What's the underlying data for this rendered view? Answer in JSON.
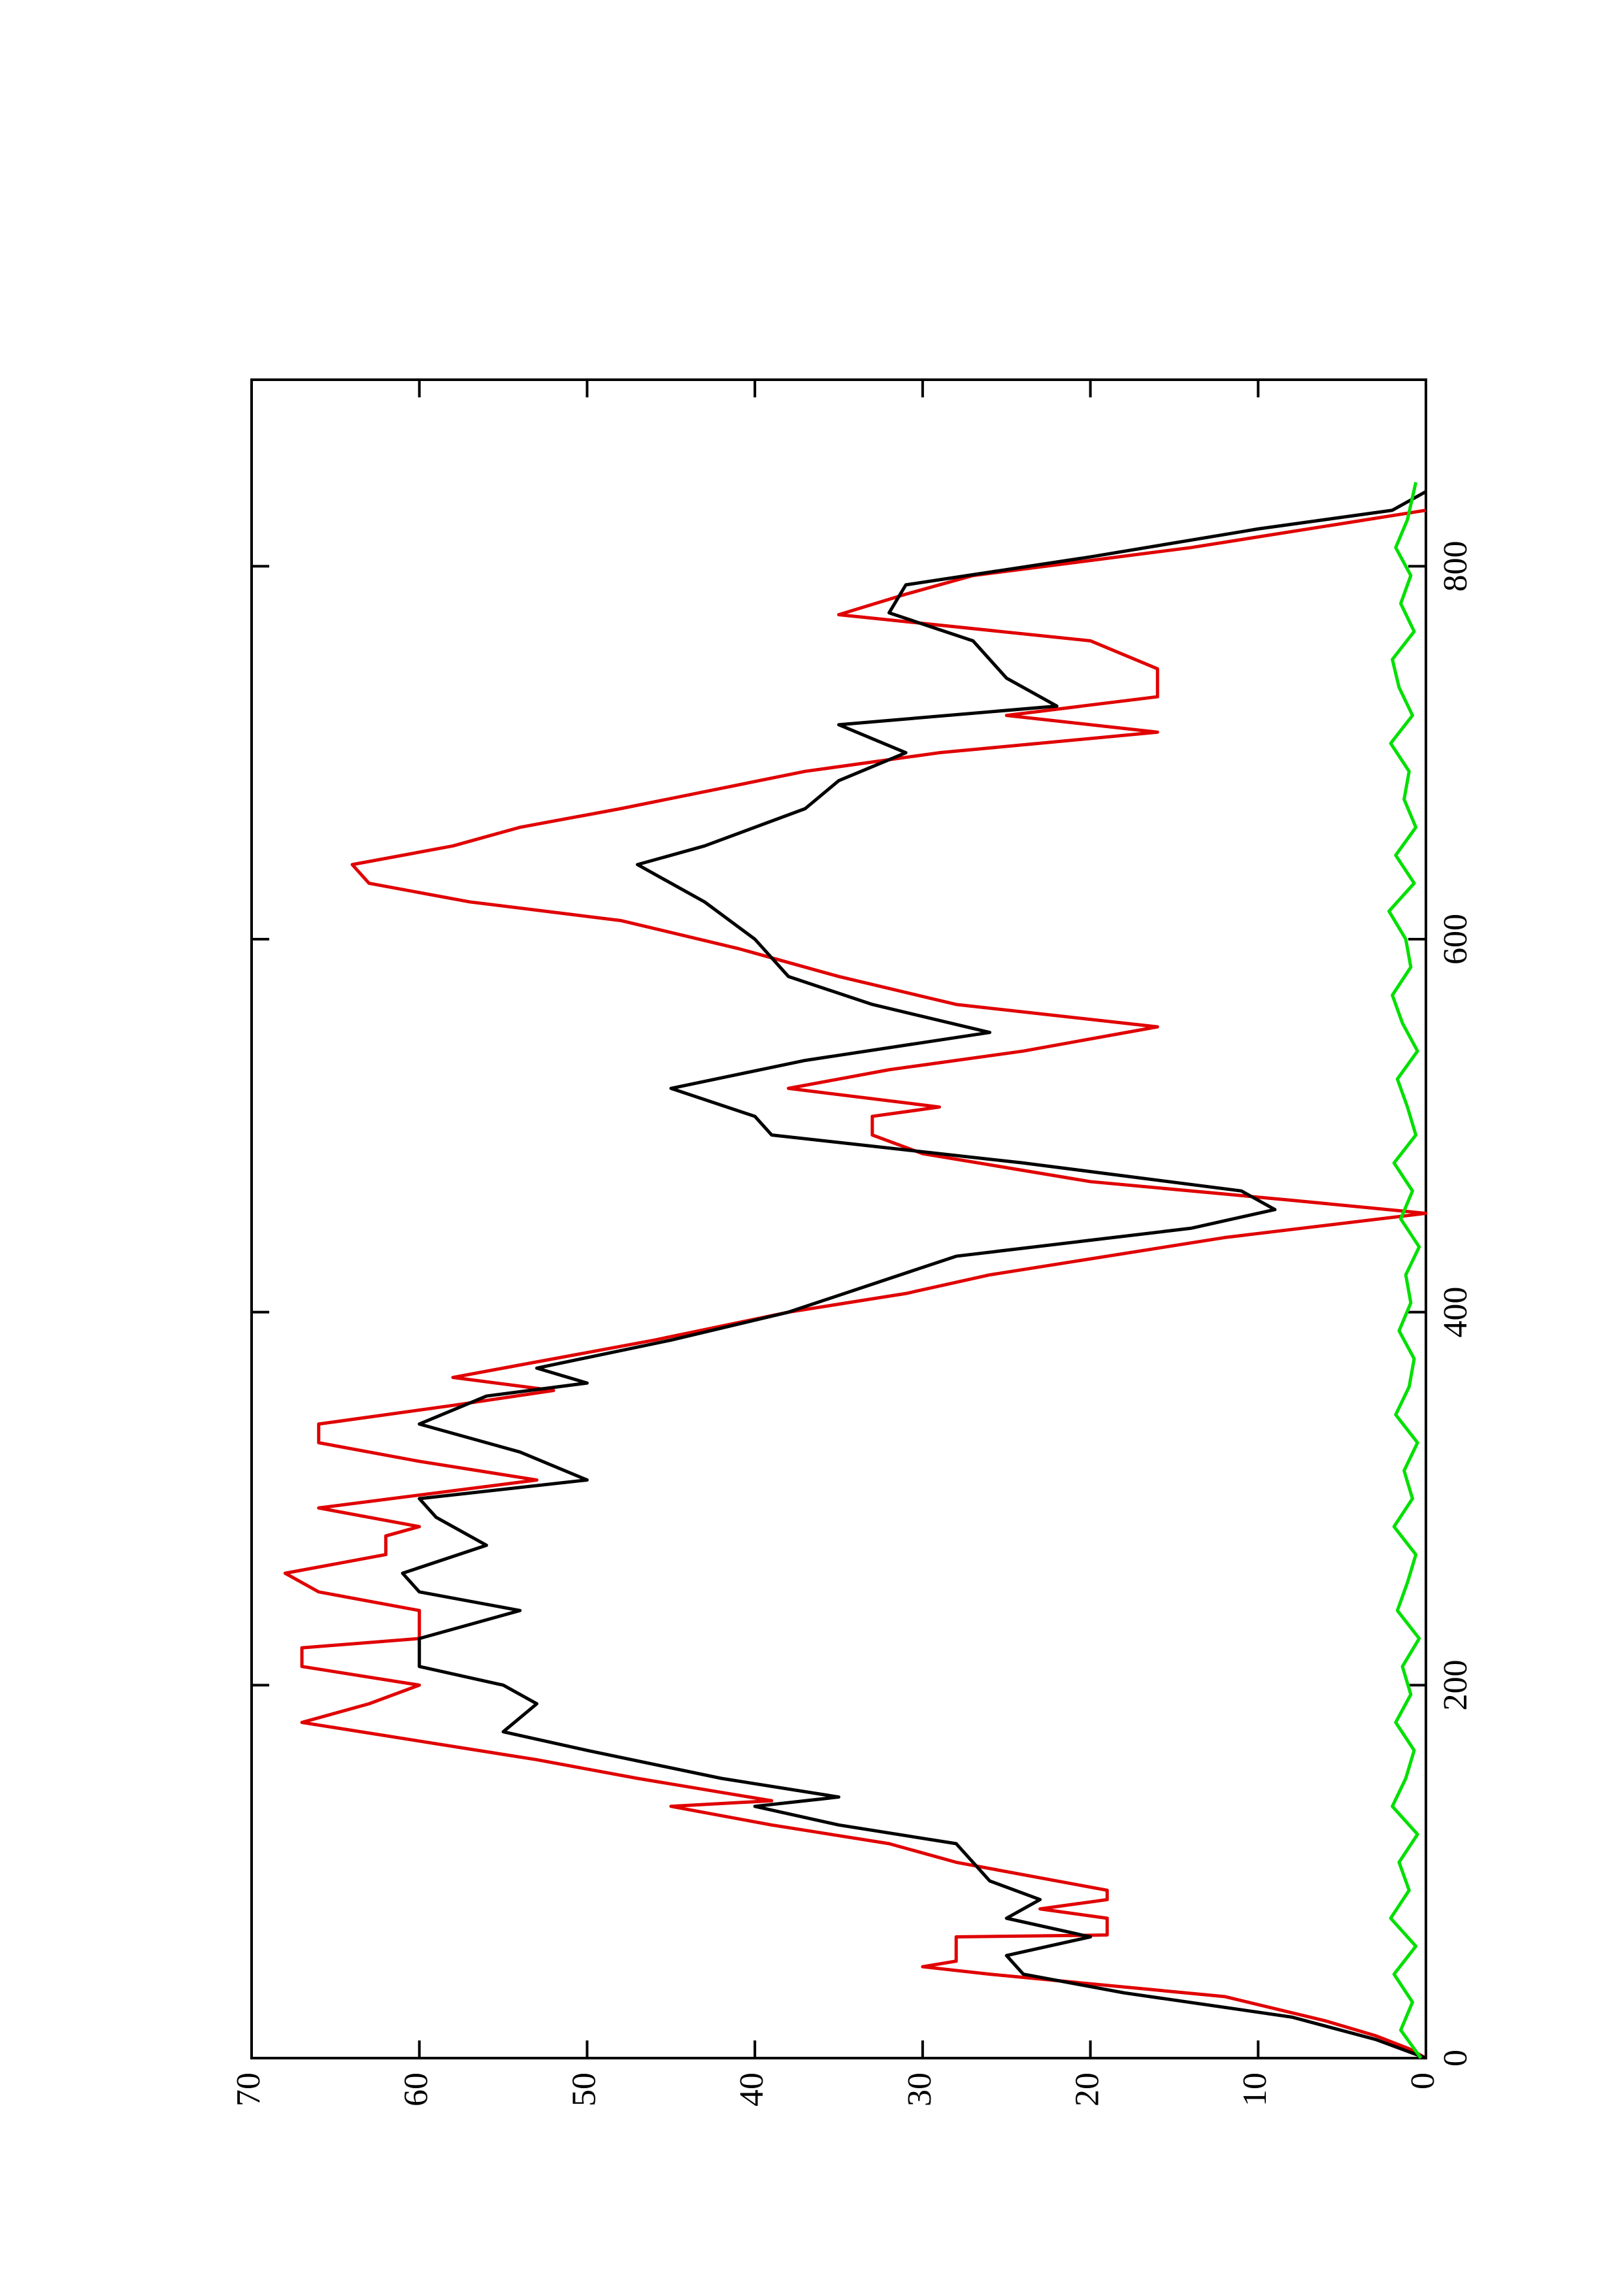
{
  "chart_data": {
    "type": "line",
    "xlim": [
      0,
      900
    ],
    "ylim": [
      0,
      70
    ],
    "xticks": [
      0,
      200,
      400,
      600,
      800
    ],
    "yticks": [
      0,
      10,
      20,
      30,
      40,
      50,
      60,
      70
    ],
    "series": [
      {
        "color": "#e00000",
        "x": [
          0,
          5,
          12,
          20,
          33,
          45,
          49,
          52,
          65,
          66,
          75,
          80,
          85,
          90,
          105,
          115,
          125,
          135,
          138,
          150,
          160,
          170,
          180,
          190,
          200,
          210,
          220,
          225,
          240,
          250,
          260,
          270,
          280,
          285,
          295,
          310,
          320,
          330,
          340,
          350,
          358,
          365,
          370,
          385,
          400,
          410,
          420,
          440,
          453,
          460,
          470,
          485,
          495,
          505,
          510,
          520,
          530,
          540,
          553,
          565,
          580,
          595,
          610,
          620,
          630,
          640,
          650,
          660,
          670,
          690,
          700,
          711,
          720,
          730,
          745,
          760,
          774,
          785,
          795,
          810,
          830
        ],
        "values": [
          0,
          1,
          3,
          6,
          12,
          26,
          30,
          28,
          28,
          19,
          19,
          23,
          19,
          19,
          28,
          32,
          39,
          45,
          39,
          47,
          53,
          60,
          67,
          63,
          60,
          67,
          67,
          60,
          60,
          66,
          68,
          62,
          62,
          60,
          66,
          53,
          60,
          66,
          66,
          58,
          52,
          58,
          55,
          46,
          38,
          31,
          26,
          12,
          0,
          8,
          20,
          30,
          33,
          33,
          29,
          38,
          32,
          24,
          16,
          28,
          35,
          41,
          48,
          57,
          63,
          64,
          58,
          54,
          48,
          37,
          29,
          16,
          25,
          16,
          16,
          20,
          35,
          31,
          27,
          14,
          0
        ]
      },
      {
        "color": "#000000",
        "x": [
          0,
          10,
          22,
          35,
          45,
          55,
          65,
          75,
          85,
          95,
          115,
          125,
          135,
          140,
          150,
          165,
          175,
          190,
          200,
          210,
          225,
          240,
          250,
          260,
          275,
          290,
          300,
          310,
          325,
          340,
          355,
          362,
          370,
          385,
          400,
          430,
          445,
          455,
          465,
          480,
          495,
          505,
          520,
          535,
          550,
          565,
          580,
          600,
          620,
          640,
          650,
          670,
          685,
          700,
          715,
          725,
          740,
          760,
          775,
          790,
          805,
          820,
          830,
          840
        ],
        "values": [
          0,
          3,
          8,
          18,
          24,
          25,
          20,
          25,
          23,
          26,
          28,
          35,
          40,
          35,
          42,
          50,
          55,
          53,
          55,
          60,
          60,
          54,
          60,
          61,
          56,
          59,
          60,
          50,
          54,
          60,
          56,
          50,
          53,
          45,
          38,
          28,
          14,
          9,
          11,
          24,
          39,
          40,
          45,
          37,
          26,
          33,
          38,
          40,
          43,
          47,
          43,
          37,
          35,
          31,
          35,
          22,
          25,
          27,
          32,
          31,
          20,
          10,
          2,
          0
        ]
      },
      {
        "color": "#00e000",
        "x": [
          0,
          15,
          30,
          45,
          60,
          75,
          90,
          105,
          120,
          135,
          150,
          165,
          180,
          195,
          210,
          225,
          240,
          255,
          270,
          285,
          300,
          315,
          330,
          345,
          360,
          375,
          390,
          405,
          420,
          435,
          450,
          465,
          480,
          495,
          510,
          525,
          540,
          555,
          570,
          585,
          600,
          615,
          630,
          645,
          660,
          675,
          690,
          705,
          720,
          735,
          750,
          765,
          780,
          795,
          810,
          825,
          845
        ],
        "values": [
          0.3,
          1.5,
          0.8,
          1.9,
          0.6,
          2.1,
          1.0,
          1.6,
          0.5,
          2.0,
          1.2,
          0.7,
          1.8,
          0.9,
          1.4,
          0.4,
          1.7,
          1.1,
          0.6,
          1.9,
          0.8,
          1.3,
          0.5,
          1.8,
          1.0,
          0.7,
          1.6,
          0.9,
          1.2,
          0.4,
          1.5,
          0.8,
          1.9,
          0.6,
          1.1,
          1.7,
          0.5,
          1.4,
          2.0,
          0.9,
          1.2,
          2.2,
          0.7,
          1.8,
          0.6,
          1.3,
          1.0,
          2.1,
          0.8,
          1.6,
          2.0,
          0.7,
          1.5,
          0.9,
          1.8,
          1.1,
          0.6
        ]
      }
    ]
  }
}
